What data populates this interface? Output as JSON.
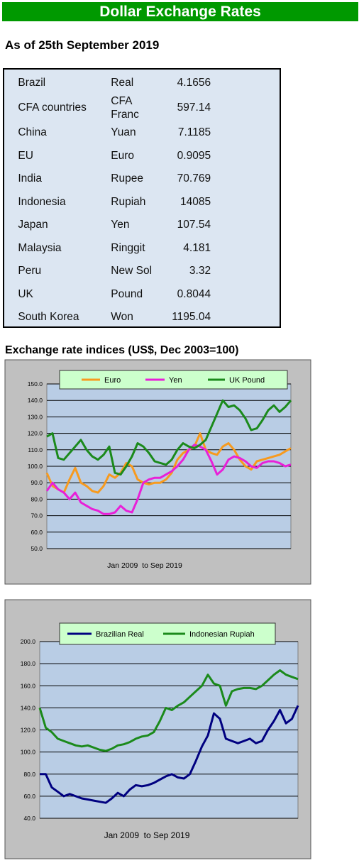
{
  "header": {
    "title": "Dollar Exchange Rates"
  },
  "date_line": "As of 25th September 2019",
  "table": {
    "rows": [
      [
        "Brazil",
        "Real",
        "4.1656"
      ],
      [
        "CFA countries",
        "CFA Franc",
        "597.14"
      ],
      [
        "China",
        "Yuan",
        "7.1185"
      ],
      [
        "EU",
        "Euro",
        "0.9095"
      ],
      [
        "India",
        "Rupee",
        "70.769"
      ],
      [
        "Indonesia",
        "Rupiah",
        "14085"
      ],
      [
        "Japan",
        "Yen",
        "107.54"
      ],
      [
        "Malaysia",
        "Ringgit",
        "4.181"
      ],
      [
        "Peru",
        "New Sol",
        "3.32"
      ],
      [
        "UK",
        "Pound",
        "0.8044"
      ],
      [
        "South Korea",
        "Won",
        "1195.04"
      ]
    ]
  },
  "section_title": "Exchange rate indices (US$, Dec 2003=100)",
  "chart_data": [
    {
      "type": "line",
      "x_label": "Jan 2009  to Sep 2019",
      "grid": true,
      "legend": "top",
      "ylim": [
        50,
        150
      ],
      "yticks": [
        {
          "value": 50,
          "label": "50.0"
        },
        {
          "value": 60,
          "label": "60.0"
        },
        {
          "value": 70,
          "label": "70.0"
        },
        {
          "value": 80,
          "label": "80.0"
        },
        {
          "value": 90,
          "label": "90.0"
        },
        {
          "value": 100,
          "label": "100.0"
        },
        {
          "value": 110,
          "label": "110.0"
        },
        {
          "value": 120,
          "label": "120.0"
        },
        {
          "value": 130,
          "label": "130.0"
        },
        {
          "value": 140,
          "label": "140.0"
        },
        {
          "value": 150,
          "label": "150.0"
        }
      ],
      "series": [
        {
          "name": "Euro",
          "color": "#f79a1e",
          "values": [
            96,
            88,
            86,
            84,
            92,
            99,
            90,
            88,
            85,
            84,
            88,
            95,
            93,
            96,
            102,
            100,
            92,
            90,
            89,
            90,
            90,
            92,
            96,
            104,
            108,
            110,
            112,
            120,
            110,
            108,
            107,
            112,
            114,
            110,
            104,
            100,
            98,
            103,
            104,
            105,
            106,
            107,
            109,
            111
          ]
        },
        {
          "name": "Yen",
          "color": "#e820d8",
          "values": [
            85,
            90,
            86,
            84,
            80,
            84,
            78,
            76,
            74,
            73,
            71,
            71,
            72,
            76,
            73,
            72,
            80,
            90,
            92,
            93,
            93,
            95,
            97,
            100,
            104,
            110,
            113,
            112,
            110,
            103,
            95,
            98,
            104,
            106,
            105,
            103,
            100,
            99,
            102,
            103,
            103,
            102,
            100,
            101
          ]
        },
        {
          "name": "UK Pound",
          "color": "#1b8a1b",
          "values": [
            118,
            120,
            105,
            104,
            108,
            112,
            116,
            110,
            106,
            104,
            107,
            112,
            96,
            95,
            100,
            106,
            114,
            112,
            108,
            103,
            102,
            101,
            104,
            110,
            114,
            112,
            111,
            113,
            116,
            124,
            132,
            140,
            136,
            137,
            134,
            129,
            122,
            123,
            128,
            134,
            137,
            133,
            136,
            140
          ]
        }
      ]
    },
    {
      "type": "line",
      "x_label": "Jan 2009  to Sep 2019",
      "grid": true,
      "legend": "top",
      "ylim": [
        40,
        200
      ],
      "yticks": [
        {
          "value": 40,
          "label": "40.0"
        },
        {
          "value": 60,
          "label": "60.0"
        },
        {
          "value": 80,
          "label": "80.0"
        },
        {
          "value": 100,
          "label": "100.0"
        },
        {
          "value": 120,
          "label": "120.0"
        },
        {
          "value": 140,
          "label": "140.0"
        },
        {
          "value": 160,
          "label": "160.0"
        },
        {
          "value": 180,
          "label": "180.0"
        },
        {
          "value": 200,
          "label": "200.0"
        }
      ],
      "series": [
        {
          "name": "Brazilian Real",
          "color": "#000080",
          "values": [
            80,
            80,
            68,
            64,
            60,
            62,
            60,
            58,
            57,
            56,
            55,
            54,
            58,
            63,
            60,
            66,
            70,
            69,
            70,
            72,
            75,
            78,
            80,
            77,
            76,
            80,
            92,
            105,
            115,
            135,
            130,
            112,
            110,
            108,
            110,
            112,
            108,
            110,
            120,
            128,
            138,
            126,
            130,
            142
          ]
        },
        {
          "name": "Indonesian Rupiah",
          "color": "#1b8a1b",
          "values": [
            140,
            122,
            118,
            112,
            110,
            108,
            106,
            105,
            106,
            104,
            102,
            101,
            103,
            106,
            107,
            109,
            112,
            114,
            115,
            118,
            128,
            140,
            138,
            142,
            145,
            150,
            155,
            160,
            170,
            162,
            160,
            142,
            155,
            157,
            158,
            158,
            157,
            160,
            165,
            170,
            174,
            170,
            168,
            166
          ]
        }
      ]
    }
  ]
}
